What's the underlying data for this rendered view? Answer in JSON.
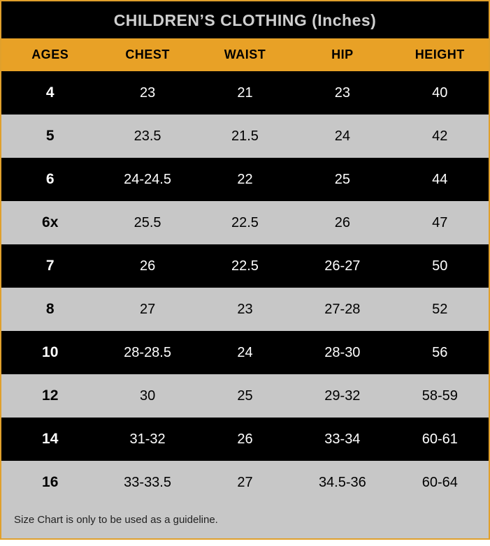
{
  "title": "CHILDREN’S CLOTHING (Inches)",
  "columns": [
    "AGES",
    "CHEST",
    "WAIST",
    "HIP",
    "HEIGHT"
  ],
  "rows": [
    {
      "shade": "dark",
      "cells": [
        "4",
        "23",
        "21",
        "23",
        "40"
      ]
    },
    {
      "shade": "light",
      "cells": [
        "5",
        "23.5",
        "21.5",
        "24",
        "42"
      ]
    },
    {
      "shade": "dark",
      "cells": [
        "6",
        "24-24.5",
        "22",
        "25",
        "44"
      ]
    },
    {
      "shade": "light",
      "cells": [
        "6x",
        "25.5",
        "22.5",
        "26",
        "47"
      ]
    },
    {
      "shade": "dark",
      "cells": [
        "7",
        "26",
        "22.5",
        "26-27",
        "50"
      ]
    },
    {
      "shade": "light",
      "cells": [
        "8",
        "27",
        "23",
        "27-28",
        "52"
      ]
    },
    {
      "shade": "dark",
      "cells": [
        "10",
        "28-28.5",
        "24",
        "28-30",
        "56"
      ]
    },
    {
      "shade": "light",
      "cells": [
        "12",
        "30",
        "25",
        "29-32",
        "58-59"
      ]
    },
    {
      "shade": "dark",
      "cells": [
        "14",
        "31-32",
        "26",
        "33-34",
        "60-61"
      ]
    },
    {
      "shade": "light",
      "cells": [
        "16",
        "33-33.5",
        "27",
        "34.5-36",
        "60-64"
      ]
    }
  ],
  "footer": "Size Chart is only to be used as a guideline.",
  "colors": {
    "accent": "#e8a126",
    "dark_bg": "#000000",
    "light_bg": "#c7c7c7",
    "title_text": "#cfcfcf"
  }
}
